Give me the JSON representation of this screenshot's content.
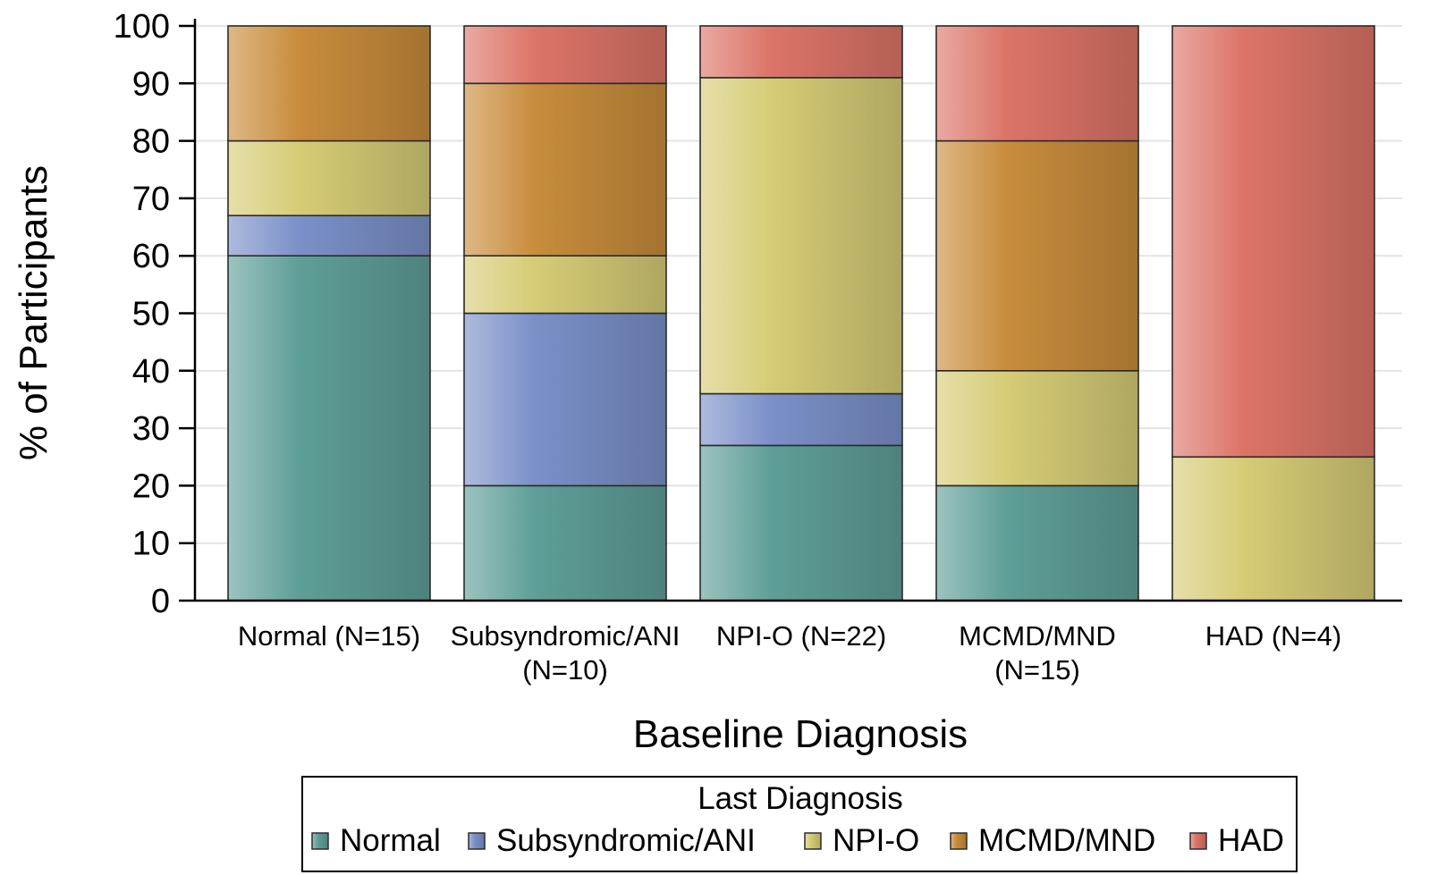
{
  "chart_data": {
    "type": "bar",
    "stacked": true,
    "title": "",
    "xlabel": "Baseline Diagnosis",
    "ylabel": "% of Participants",
    "ylim": [
      0,
      100
    ],
    "yticks": [
      0,
      10,
      20,
      30,
      40,
      50,
      60,
      70,
      80,
      90,
      100
    ],
    "grid": "horizontal",
    "categories": [
      [
        "Normal (N=15)"
      ],
      [
        "Subsyndromic/ANI",
        "(N=10)"
      ],
      [
        "NPI-O (N=22)"
      ],
      [
        "MCMD/MND",
        "(N=15)"
      ],
      [
        "HAD (N=4)"
      ]
    ],
    "legend": {
      "title": "Last Diagnosis",
      "position": "bottom"
    },
    "series": [
      {
        "name": "Normal",
        "color": "#5f9e98",
        "values": [
          60,
          20,
          27,
          20,
          0
        ]
      },
      {
        "name": "Subsyndromic/ANI",
        "color": "#7a90c8",
        "values": [
          7,
          30,
          9,
          0,
          0
        ]
      },
      {
        "name": "NPI-O",
        "color": "#d6cc76",
        "values": [
          13,
          10,
          55,
          20,
          25
        ]
      },
      {
        "name": "MCMD/MND",
        "color": "#c88c3c",
        "values": [
          20,
          30,
          0,
          40,
          0
        ]
      },
      {
        "name": "HAD",
        "color": "#dc7468",
        "values": [
          0,
          10,
          9,
          20,
          75
        ]
      }
    ]
  }
}
